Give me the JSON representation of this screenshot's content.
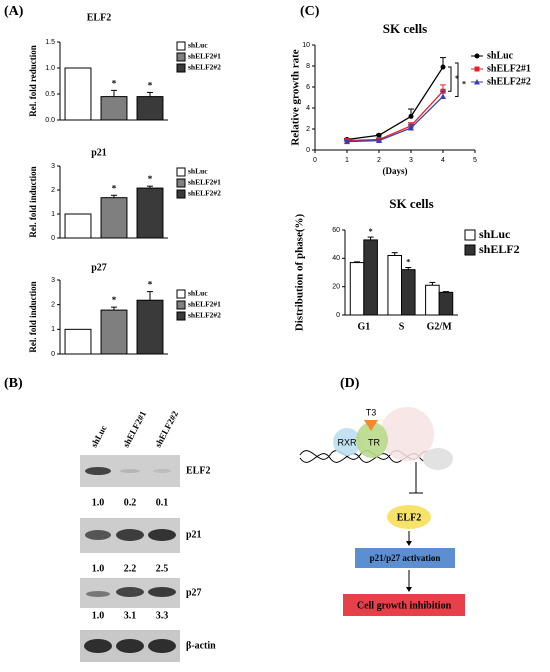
{
  "panel_labels": [
    "(A)",
    "(B)",
    "(C)",
    "(D)"
  ],
  "chart_data": [
    {
      "type": "bar",
      "title": "ELF2",
      "y_label": "Rel. fold reduction",
      "categories": [
        "shLuc",
        "shELF2#1",
        "shELF2#2"
      ],
      "values": [
        1.0,
        0.45,
        0.45
      ],
      "errors": [
        null,
        0.12,
        0.08
      ],
      "annotations": [
        null,
        "*",
        "*"
      ],
      "colors": [
        "#ffffff",
        "#7f7f7f",
        "#3a3a3a"
      ],
      "ylim": [
        0,
        1.5
      ],
      "yticks": [
        {
          "value": 0,
          "label": "0.0"
        },
        0.5,
        {
          "value": 1,
          "label": "1.0"
        },
        1.5
      ]
    },
    {
      "type": "bar",
      "title": "p21",
      "y_label": "Rel. fold induction",
      "categories": [
        "shLuc",
        "shELF2#1",
        "shELF2#2"
      ],
      "values": [
        1.0,
        1.68,
        2.08
      ],
      "errors": [
        null,
        0.1,
        0.08
      ],
      "annotations": [
        null,
        "*",
        "*"
      ],
      "colors": [
        "#ffffff",
        "#7f7f7f",
        "#3a3a3a"
      ],
      "ylim": [
        0,
        3
      ],
      "yticks": [
        0,
        1,
        2,
        3
      ]
    },
    {
      "type": "bar",
      "title": "p27",
      "y_label": "Rel. fold induction",
      "categories": [
        "shLuc",
        "shELF2#1",
        "shELF2#2"
      ],
      "values": [
        1.0,
        1.78,
        2.18
      ],
      "errors": [
        null,
        0.12,
        0.35
      ],
      "annotations": [
        null,
        "*",
        "*"
      ],
      "colors": [
        "#ffffff",
        "#7f7f7f",
        "#3a3a3a"
      ],
      "ylim": [
        0,
        3
      ],
      "yticks": [
        0,
        1,
        2,
        3
      ]
    },
    {
      "type": "line",
      "title": "SK cells",
      "x_label": "(Days)",
      "y_label": "Relative growth rate",
      "x": [
        1,
        2,
        3,
        4
      ],
      "series": [
        {
          "name": "shLuc",
          "color": "#000000",
          "values": [
            1.0,
            1.4,
            3.2,
            7.9
          ],
          "errors": [
            0.1,
            0.1,
            0.7,
            0.9
          ]
        },
        {
          "name": "shELF2#1",
          "color": "#e8202a",
          "values": [
            0.9,
            1.0,
            2.3,
            5.6
          ],
          "errors": [
            0.1,
            0.1,
            0.3,
            0.6
          ]
        },
        {
          "name": "shELF2#2",
          "color": "#3a3fb0",
          "values": [
            0.8,
            0.9,
            2.1,
            5.1
          ],
          "errors": [
            0.1,
            0.1,
            0.3,
            0.5
          ]
        }
      ],
      "annotations": [
        "*",
        "*"
      ],
      "xlim": [
        0,
        5
      ],
      "xticks": [
        0,
        1,
        2,
        3,
        4,
        5
      ],
      "ylim": [
        0,
        10
      ],
      "yticks": [
        0,
        2,
        4,
        6,
        8,
        10
      ]
    },
    {
      "type": "grouped_bar",
      "title": "SK cells",
      "y_label": "Distribution of phase(%)",
      "categories": [
        "G1",
        "S",
        "G2/M"
      ],
      "series": [
        {
          "name": "shLuc",
          "color": "#ffffff",
          "values": [
            37,
            42,
            21
          ],
          "errors": [
            0.5,
            2,
            2
          ]
        },
        {
          "name": "shELF2",
          "color": "#333333",
          "values": [
            53,
            32,
            16
          ],
          "errors": [
            2,
            1.5,
            0.5
          ]
        }
      ],
      "annotations": [
        "*",
        "*",
        null
      ],
      "ylim": [
        0,
        60
      ],
      "yticks": [
        0,
        20,
        40,
        60
      ]
    }
  ],
  "blot": {
    "lanes": [
      "shLuc",
      "shELF2#1",
      "shELF2#2"
    ],
    "rows": [
      {
        "label": "ELF2",
        "values": [
          "1.0",
          "0.2",
          "0.1"
        ]
      },
      {
        "label": "p21",
        "values": [
          "1.0",
          "2.2",
          "2.5"
        ]
      },
      {
        "label": "p27",
        "values": [
          "1.0",
          "3.1",
          "3.3"
        ]
      },
      {
        "label": "β-actin"
      }
    ]
  },
  "diagram": {
    "rxr": "RXR",
    "tr": "TR",
    "t3": "T3",
    "elf2": "ELF2",
    "activation": "p21/p27 activation",
    "outcome": "Cell growth inhibition"
  }
}
